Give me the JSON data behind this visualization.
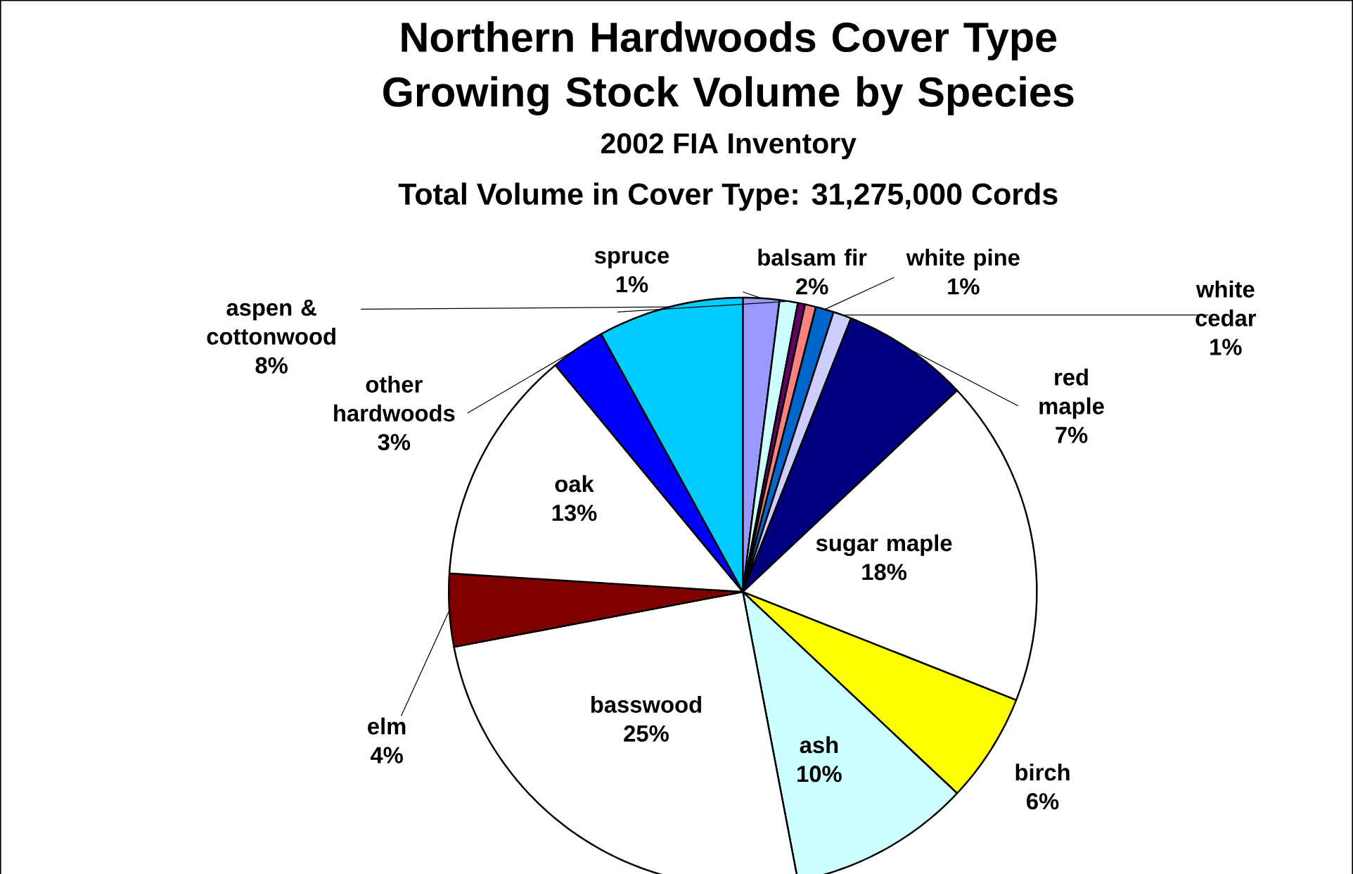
{
  "chart_data": {
    "type": "pie",
    "title": "Northern Hardwoods Cover Type Growing Stock Volume by Species",
    "subtitle": "2002 FIA Inventory",
    "annotations": [
      "Total Volume in Cover Type: 31,275,000 Cords"
    ],
    "categories": [
      "balsam fir",
      "spruce",
      null,
      null,
      "white pine",
      "white cedar",
      "red maple",
      "sugar maple",
      "birch",
      "ash",
      "basswood",
      "elm",
      "oak",
      "other hardwoods",
      "aspen & cottonwood"
    ],
    "values": [
      2,
      1,
      0.4,
      0.6,
      1,
      1,
      7,
      18,
      6,
      10,
      25,
      4,
      13,
      3,
      8
    ],
    "value_labels": [
      "2%",
      "1%",
      null,
      null,
      "1%",
      "1%",
      "7%",
      "18%",
      "6%",
      "10%",
      "25%",
      "4%",
      "13%",
      "3%",
      "8%"
    ],
    "colors": [
      "#9999ff",
      "#ccffff",
      "#660066",
      "#ff8080",
      "#0066cc",
      "#ccccff",
      "#000080",
      "#ffffff",
      "#ffff00",
      "#ccffff",
      "#ffffff",
      "#800000",
      "#ffffff",
      "#0000ff",
      "#00ccff"
    ]
  }
}
